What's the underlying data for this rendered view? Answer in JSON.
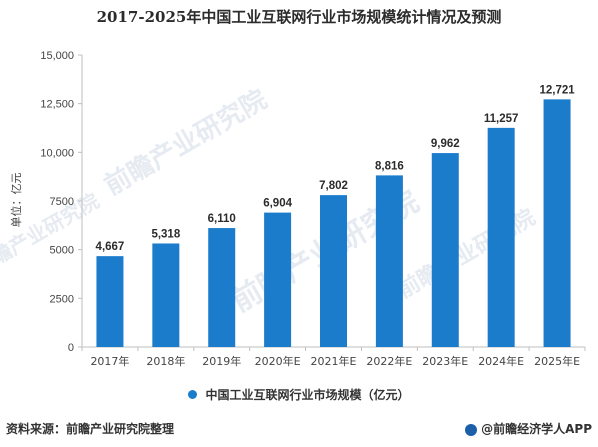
{
  "chart_data": {
    "type": "bar",
    "title": "2017-2025年中国工业互联网行业市场规模统计情况及预测",
    "ylabel": "单位：亿元",
    "xlabel": "",
    "categories": [
      "2017年",
      "2018年",
      "2019年",
      "2020年E",
      "2021年E",
      "2022年E",
      "2023年E",
      "2024年E",
      "2025年E"
    ],
    "series": [
      {
        "name": "中国工业互联网行业市场规模（亿元）",
        "values": [
          4667,
          5318,
          6110,
          6904,
          7802,
          8816,
          9962,
          11257,
          12721
        ]
      }
    ],
    "data_labels": [
      "4,667",
      "5,318",
      "6,110",
      "6,904",
      "7,802",
      "8,816",
      "9,962",
      "11,257",
      "12,721"
    ],
    "y_ticks": [
      0,
      2500,
      5000,
      7500,
      10000,
      12500,
      15000
    ],
    "y_tick_labels": [
      "0",
      "2500",
      "5000",
      "7500",
      "10,000",
      "12,500",
      "15,000"
    ],
    "ylim": [
      0,
      15000
    ],
    "grid": false,
    "legend_position": "bottom-center",
    "bar_color": "#1b7ccc"
  },
  "footer": {
    "source": "资料来源：前瞻产业研究院整理",
    "brand": "@前瞻经济学人APP"
  },
  "watermark": {
    "text": "前瞻产业研究院"
  }
}
